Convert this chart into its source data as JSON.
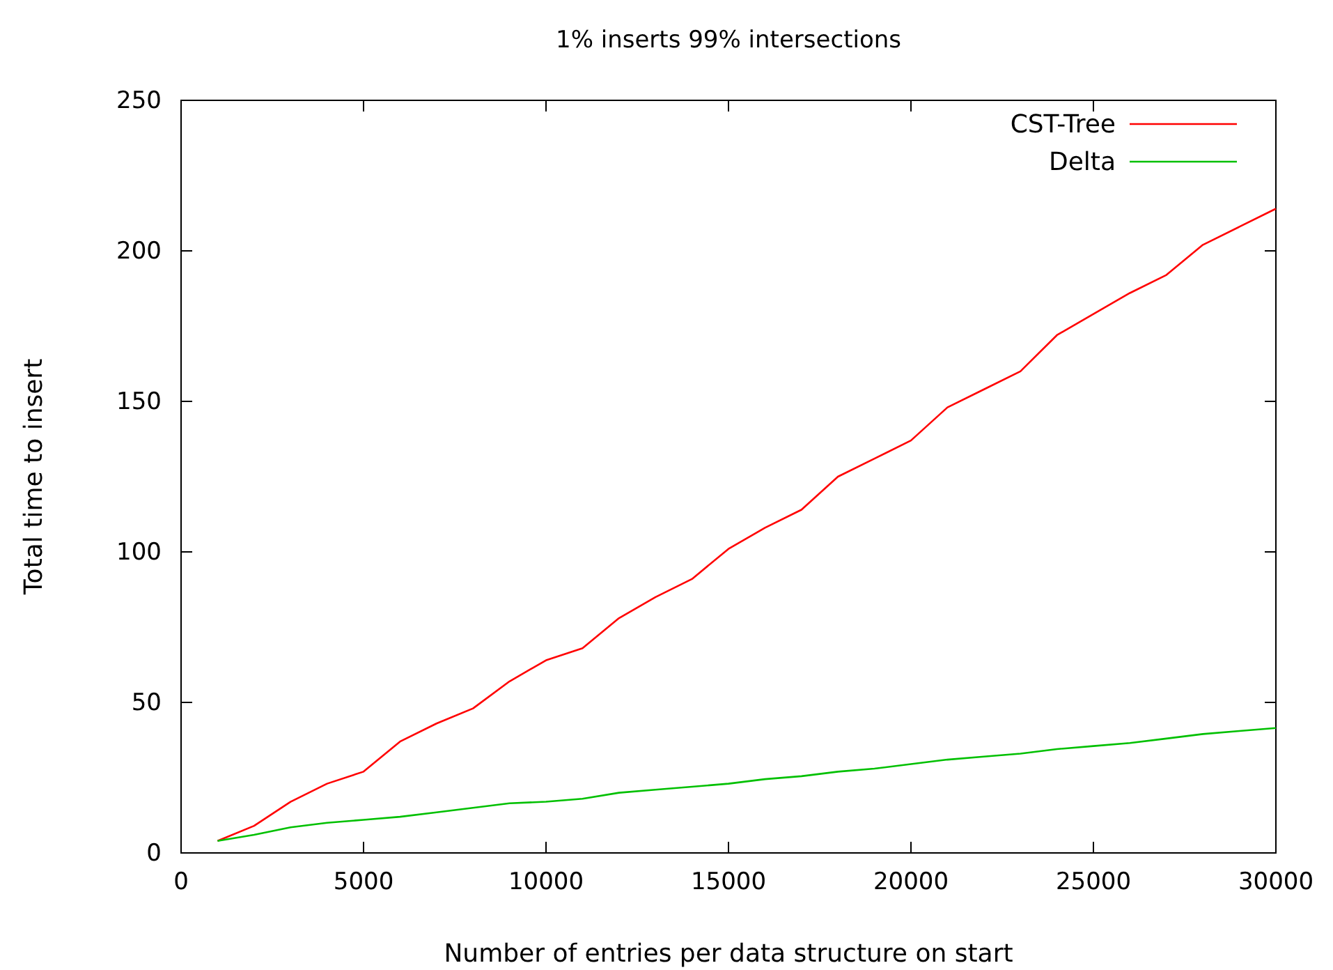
{
  "chart_data": {
    "type": "line",
    "title": "1% inserts 99% intersections",
    "xlabel": "Number of entries per data structure on start",
    "ylabel": "Total time to insert",
    "x": [
      1000,
      2000,
      3000,
      4000,
      5000,
      6000,
      7000,
      8000,
      9000,
      10000,
      11000,
      12000,
      13000,
      14000,
      15000,
      16000,
      17000,
      18000,
      19000,
      20000,
      21000,
      22000,
      23000,
      24000,
      25000,
      26000,
      27000,
      28000,
      29000,
      30000
    ],
    "series": [
      {
        "name": "CST-Tree",
        "color": "#ff0000",
        "values": [
          4,
          9,
          17,
          23,
          27,
          37,
          43,
          48,
          57,
          64,
          68,
          78,
          85,
          91,
          101,
          108,
          114,
          125,
          131,
          137,
          148,
          154,
          160,
          172,
          179,
          186,
          192,
          202,
          208,
          214
        ]
      },
      {
        "name": "Delta",
        "color": "#00c000",
        "values": [
          4,
          6,
          8.5,
          10,
          11,
          12,
          13.5,
          15,
          16.5,
          17,
          18,
          20,
          21,
          22,
          23,
          24.5,
          25.5,
          27,
          28,
          29.5,
          31,
          32,
          33,
          34.5,
          35.5,
          36.5,
          38,
          39.5,
          40.5,
          41.5
        ]
      }
    ],
    "xlim": [
      0,
      30000
    ],
    "xticks": [
      0,
      5000,
      10000,
      15000,
      20000,
      25000,
      30000
    ],
    "ylim": [
      0,
      250
    ],
    "yticks": [
      0,
      50,
      100,
      150,
      200,
      250
    ],
    "grid": false,
    "legend": "top right",
    "marker": "none",
    "line_style": "solid"
  }
}
